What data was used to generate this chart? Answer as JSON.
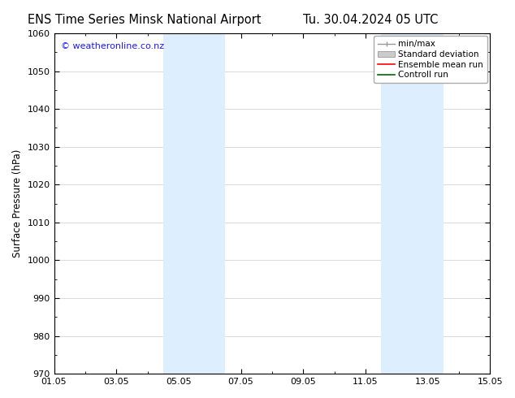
{
  "title_left": "ENS Time Series Minsk National Airport",
  "title_right": "Tu. 30.04.2024 05 UTC",
  "ylabel": "Surface Pressure (hPa)",
  "ylim": [
    970,
    1060
  ],
  "yticks": [
    970,
    980,
    990,
    1000,
    1010,
    1020,
    1030,
    1040,
    1050,
    1060
  ],
  "xlim": [
    0,
    14
  ],
  "xtick_labels": [
    "01.05",
    "03.05",
    "05.05",
    "07.05",
    "09.05",
    "11.05",
    "13.05",
    "15.05"
  ],
  "xtick_positions": [
    0,
    2,
    4,
    6,
    8,
    10,
    12,
    14
  ],
  "shaded_regions": [
    {
      "x_start": 3.5,
      "x_end": 5.5
    },
    {
      "x_start": 10.5,
      "x_end": 12.5
    }
  ],
  "shaded_color": "#ddeeff",
  "background_color": "#ffffff",
  "watermark_text": "© weatheronline.co.nz",
  "watermark_color": "#1a1aff",
  "legend_entries": [
    {
      "label": "min/max",
      "color": "#999999",
      "style": "minmax"
    },
    {
      "label": "Standard deviation",
      "color": "#cccccc",
      "style": "stddev"
    },
    {
      "label": "Ensemble mean run",
      "color": "#ff0000",
      "style": "line"
    },
    {
      "label": "Controll run",
      "color": "#006600",
      "style": "line"
    }
  ],
  "title_fontsize": 10.5,
  "watermark_fontsize": 8,
  "axis_label_fontsize": 8.5,
  "tick_fontsize": 8,
  "legend_fontsize": 7.5,
  "grid_color": "#cccccc",
  "border_color": "#000000"
}
